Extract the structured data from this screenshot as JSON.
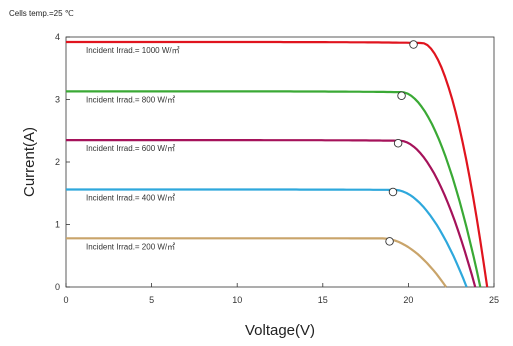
{
  "chart_data": {
    "type": "line",
    "note": "Cells temp.=25 ℃",
    "xlabel": "Voltage(V)",
    "ylabel": "Current(A)",
    "xlim": [
      0,
      25
    ],
    "ylim": [
      0,
      4
    ],
    "xticks": [
      "0",
      "5",
      "10",
      "15",
      "20",
      "25"
    ],
    "yticks": [
      "0",
      "1",
      "2",
      "3",
      "4"
    ],
    "grid": false,
    "series": [
      {
        "name": "Incident Irrad.= 1000 W/㎡",
        "color": "#e0141e",
        "isc": 3.92,
        "voc": 24.6,
        "knee": 20.8,
        "mpp": [
          20.3,
          3.88
        ]
      },
      {
        "name": "Incident Irrad.= 800 W/㎡",
        "color": "#3aa935",
        "isc": 3.13,
        "voc": 24.2,
        "knee": 19.6,
        "mpp": [
          19.6,
          3.06
        ]
      },
      {
        "name": "Incident Irrad.= 600 W/㎡",
        "color": "#a5125a",
        "isc": 2.35,
        "voc": 23.9,
        "knee": 19.5,
        "mpp": [
          19.4,
          2.3
        ]
      },
      {
        "name": "Incident Irrad.= 400 W/㎡",
        "color": "#2ea8dc",
        "isc": 1.56,
        "voc": 23.4,
        "knee": 19.2,
        "mpp": [
          19.1,
          1.52
        ]
      },
      {
        "name": "Incident Irrad.= 200 W/㎡",
        "color": "#c9a46a",
        "isc": 0.78,
        "voc": 22.2,
        "knee": 18.5,
        "mpp": [
          18.9,
          0.73
        ]
      }
    ]
  }
}
